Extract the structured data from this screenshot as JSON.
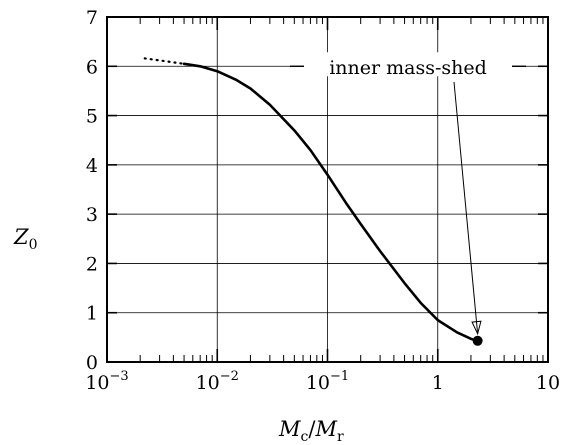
{
  "chart_data": {
    "type": "line",
    "title": "",
    "xscale": "log",
    "xlim": [
      0.001,
      10
    ],
    "ylim": [
      0,
      7
    ],
    "grid": true,
    "xlabel": {
      "main": "M",
      "main_sub": "c",
      "sep": "/",
      "den": "M",
      "den_sub": "r"
    },
    "ylabel": {
      "main": "Z",
      "sub": "0"
    },
    "x_ticks": [
      {
        "base": "10",
        "exp": "−3"
      },
      {
        "base": "10",
        "exp": "−2"
      },
      {
        "base": "10",
        "exp": "−1"
      },
      {
        "base": "1",
        "exp": ""
      },
      {
        "base": "10",
        "exp": ""
      }
    ],
    "y_ticks": [
      "0",
      "1",
      "2",
      "3",
      "4",
      "5",
      "6",
      "7"
    ],
    "series": [
      {
        "style": "dotted",
        "x": [
          0.0022,
          0.003,
          0.004,
          0.005
        ],
        "y": [
          6.16,
          6.12,
          6.08,
          6.05
        ]
      },
      {
        "style": "solid",
        "x": [
          0.005,
          0.007,
          0.01,
          0.015,
          0.02,
          0.03,
          0.05,
          0.07,
          0.1,
          0.15,
          0.2,
          0.3,
          0.5,
          0.7,
          1.0,
          1.5,
          2.0,
          2.3
        ],
        "y": [
          6.05,
          6.0,
          5.9,
          5.72,
          5.55,
          5.22,
          4.7,
          4.3,
          3.8,
          3.2,
          2.8,
          2.25,
          1.6,
          1.2,
          0.85,
          0.6,
          0.47,
          0.43
        ]
      }
    ],
    "endpoint": {
      "x": 2.3,
      "y": 0.43
    },
    "annotations": [
      {
        "text": "inner mass-shed",
        "target": {
          "x": 2.3,
          "y": 0.43
        }
      }
    ]
  }
}
